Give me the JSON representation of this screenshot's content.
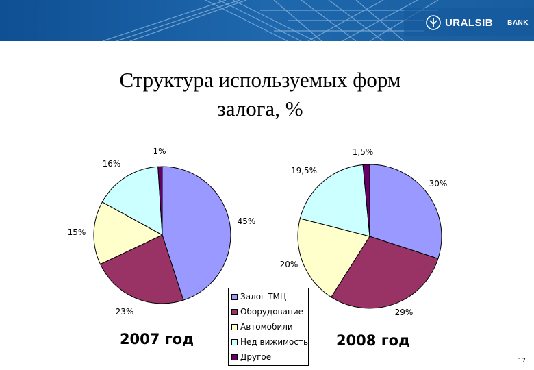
{
  "header": {
    "brand": "URALSIB",
    "bank": "BANK",
    "logo_icon": "uralsib-logo-icon"
  },
  "slide": {
    "title": "Структура используемых форм\nзалога, %",
    "page_number": "17"
  },
  "colors": {
    "banner": "#1a5fa4",
    "outline": "#000000"
  },
  "chart_data": [
    {
      "type": "pie",
      "label": "2007 год",
      "categories": [
        "Залог ТМЦ",
        "Оборудование",
        "Автомобили",
        "Нед вижимость",
        "Другое"
      ],
      "values": [
        45,
        23,
        15,
        16,
        1
      ],
      "data_labels": [
        "45%",
        "23%",
        "15%",
        "16%",
        "1%"
      ],
      "colors": [
        "#9999ff",
        "#993366",
        "#ffffcc",
        "#ccffff",
        "#660066"
      ],
      "legend_position": "bottom-center"
    },
    {
      "type": "pie",
      "label": "2008 год",
      "categories": [
        "Залог ТМЦ",
        "Оборудование",
        "Автомобили",
        "Нед вижимость",
        "Другое"
      ],
      "values": [
        30,
        29,
        20,
        19.5,
        1.5
      ],
      "data_labels": [
        "30%",
        "29%",
        "20%",
        "19,5%",
        "1,5%"
      ],
      "colors": [
        "#9999ff",
        "#993366",
        "#ffffcc",
        "#ccffff",
        "#660066"
      ],
      "legend_position": "bottom-center"
    }
  ]
}
